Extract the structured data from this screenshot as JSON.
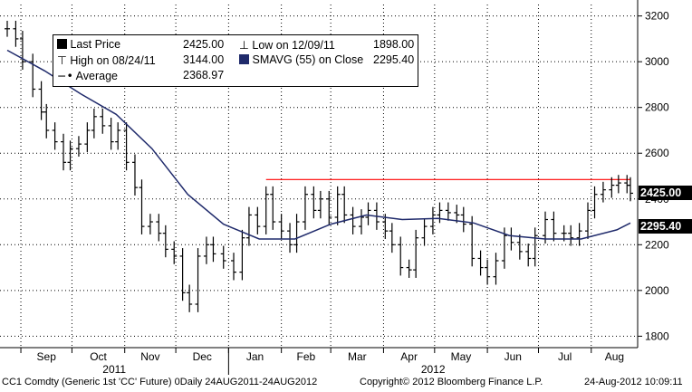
{
  "legend": {
    "last_price_label": "Last Price",
    "last_price_value": "2425.00",
    "high_label": "High on 08/24/11",
    "high_value": "3144.00",
    "average_label": "Average",
    "average_value": "2368.97",
    "low_label": "Low on 12/09/11",
    "low_value": "1898.00",
    "smavg_label": "SMAVG (55) on Close",
    "smavg_value": "2295.40"
  },
  "footer": {
    "ticker": "CC1 Comdty  (Generic 1st 'CC' Future)  0Daily 24AUG2011-24AUG2012",
    "copyright": "Copyright© 2012 Bloomberg Finance L.P.",
    "timestamp": "24-Aug-2012 10:09:11"
  },
  "badges": {
    "last_price": "2425.00",
    "smavg": "2295.40"
  },
  "colors": {
    "price_bars": "#000000",
    "smavg_line": "#1f2a6b",
    "resistance_line": "#ff0000",
    "grid": "#000000",
    "badge_bg": "#000000"
  },
  "chart_data": {
    "type": "line",
    "title": "",
    "xlabel": "",
    "ylabel": "",
    "ylim": [
      1750,
      3250
    ],
    "y_ticks": [
      1800,
      2000,
      2200,
      2400,
      2600,
      2800,
      3000,
      3200
    ],
    "y_tick_labels": [
      "1800",
      "2000",
      "2200",
      "2400",
      "2600",
      "2800",
      "3000",
      "3200"
    ],
    "month_labels": [
      "Sep",
      "Oct",
      "Nov",
      "Dec",
      "Jan",
      "Feb",
      "Mar",
      "Apr",
      "May",
      "Jun",
      "Jul",
      "Aug"
    ],
    "year_labels": [
      "2011",
      "2012"
    ],
    "grid": true,
    "x_range": [
      "2011-08-24",
      "2012-08-24"
    ],
    "series": [
      {
        "name": "Last Price",
        "style": "ohlc-bars",
        "points": [
          [
            "2011-08-24",
            3144
          ],
          [
            "2011-08-29",
            3100
          ],
          [
            "2011-09-02",
            3000
          ],
          [
            "2011-09-08",
            2880
          ],
          [
            "2011-09-13",
            2780
          ],
          [
            "2011-09-16",
            2700
          ],
          [
            "2011-09-21",
            2650
          ],
          [
            "2011-09-26",
            2560
          ],
          [
            "2011-09-30",
            2620
          ],
          [
            "2011-10-05",
            2640
          ],
          [
            "2011-10-10",
            2700
          ],
          [
            "2011-10-14",
            2760
          ],
          [
            "2011-10-19",
            2720
          ],
          [
            "2011-10-24",
            2650
          ],
          [
            "2011-10-28",
            2700
          ],
          [
            "2011-11-02",
            2560
          ],
          [
            "2011-11-07",
            2450
          ],
          [
            "2011-11-11",
            2280
          ],
          [
            "2011-11-16",
            2300
          ],
          [
            "2011-11-21",
            2250
          ],
          [
            "2011-11-25",
            2180
          ],
          [
            "2011-11-30",
            2150
          ],
          [
            "2011-12-05",
            1990
          ],
          [
            "2011-12-09",
            1940
          ],
          [
            "2011-12-14",
            2150
          ],
          [
            "2011-12-19",
            2200
          ],
          [
            "2011-12-23",
            2160
          ],
          [
            "2011-12-29",
            2130
          ],
          [
            "2012-01-04",
            2080
          ],
          [
            "2012-01-09",
            2230
          ],
          [
            "2012-01-13",
            2330
          ],
          [
            "2012-01-18",
            2280
          ],
          [
            "2012-01-23",
            2420
          ],
          [
            "2012-01-27",
            2300
          ],
          [
            "2012-02-01",
            2260
          ],
          [
            "2012-02-06",
            2200
          ],
          [
            "2012-02-10",
            2300
          ],
          [
            "2012-02-15",
            2420
          ],
          [
            "2012-02-20",
            2350
          ],
          [
            "2012-02-24",
            2400
          ],
          [
            "2012-02-29",
            2320
          ],
          [
            "2012-03-05",
            2420
          ],
          [
            "2012-03-09",
            2330
          ],
          [
            "2012-03-14",
            2280
          ],
          [
            "2012-03-19",
            2320
          ],
          [
            "2012-03-23",
            2350
          ],
          [
            "2012-03-28",
            2300
          ],
          [
            "2012-04-02",
            2260
          ],
          [
            "2012-04-06",
            2200
          ],
          [
            "2012-04-11",
            2100
          ],
          [
            "2012-04-16",
            2090
          ],
          [
            "2012-04-20",
            2230
          ],
          [
            "2012-04-25",
            2280
          ],
          [
            "2012-04-30",
            2330
          ],
          [
            "2012-05-04",
            2350
          ],
          [
            "2012-05-09",
            2340
          ],
          [
            "2012-05-14",
            2330
          ],
          [
            "2012-05-18",
            2290
          ],
          [
            "2012-05-23",
            2140
          ],
          [
            "2012-05-28",
            2100
          ],
          [
            "2012-06-01",
            2060
          ],
          [
            "2012-06-06",
            2130
          ],
          [
            "2012-06-11",
            2240
          ],
          [
            "2012-06-15",
            2210
          ],
          [
            "2012-06-20",
            2170
          ],
          [
            "2012-06-25",
            2140
          ],
          [
            "2012-06-29",
            2240
          ],
          [
            "2012-07-05",
            2310
          ],
          [
            "2012-07-10",
            2250
          ],
          [
            "2012-07-16",
            2250
          ],
          [
            "2012-07-20",
            2230
          ],
          [
            "2012-07-25",
            2260
          ],
          [
            "2012-07-30",
            2350
          ],
          [
            "2012-08-03",
            2420
          ],
          [
            "2012-08-08",
            2440
          ],
          [
            "2012-08-13",
            2460
          ],
          [
            "2012-08-17",
            2470
          ],
          [
            "2012-08-22",
            2460
          ],
          [
            "2012-08-24",
            2425
          ]
        ]
      },
      {
        "name": "SMAVG (55) on Close",
        "style": "line",
        "points": [
          [
            "2011-08-24",
            3050
          ],
          [
            "2011-09-15",
            2960
          ],
          [
            "2011-10-06",
            2860
          ],
          [
            "2011-10-27",
            2770
          ],
          [
            "2011-11-17",
            2620
          ],
          [
            "2011-12-08",
            2420
          ],
          [
            "2011-12-29",
            2290
          ],
          [
            "2012-01-19",
            2225
          ],
          [
            "2012-02-09",
            2225
          ],
          [
            "2012-03-01",
            2290
          ],
          [
            "2012-03-22",
            2330
          ],
          [
            "2012-04-12",
            2310
          ],
          [
            "2012-05-03",
            2315
          ],
          [
            "2012-05-24",
            2295
          ],
          [
            "2012-06-14",
            2240
          ],
          [
            "2012-07-05",
            2225
          ],
          [
            "2012-07-26",
            2225
          ],
          [
            "2012-08-16",
            2265
          ],
          [
            "2012-08-24",
            2295
          ]
        ]
      },
      {
        "name": "Resistance",
        "style": "line",
        "points": [
          [
            "2012-01-23",
            2485
          ],
          [
            "2012-08-24",
            2485
          ]
        ]
      }
    ]
  }
}
